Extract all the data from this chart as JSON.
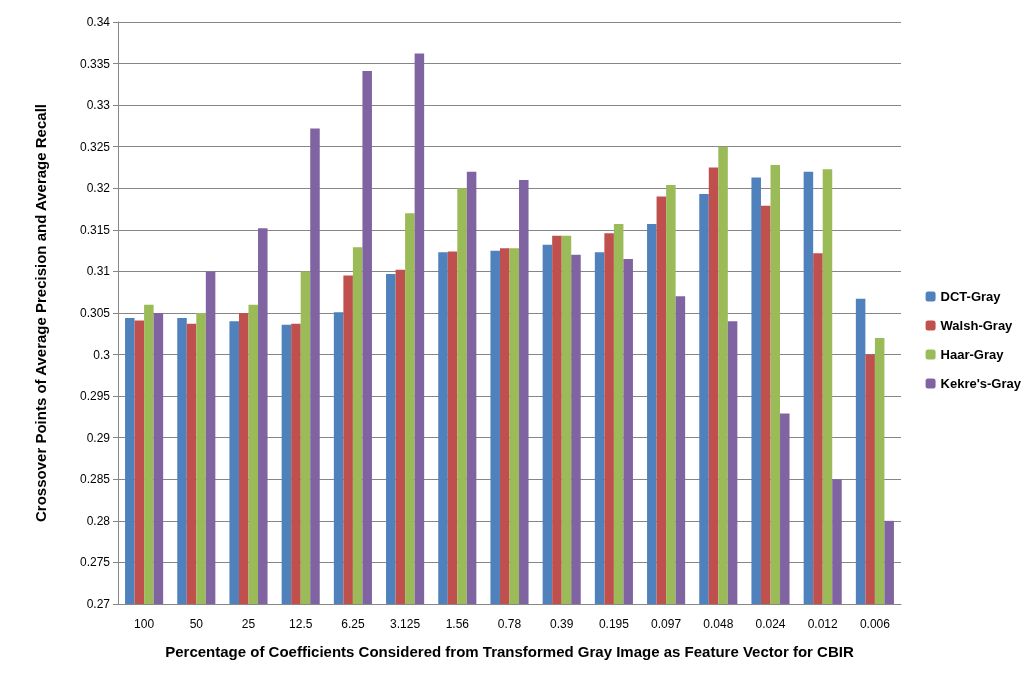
{
  "chart_data": {
    "type": "bar",
    "xlabel": "Percentage of Coefficients Considered from Transformed Gray Image as Feature Vector for CBIR",
    "ylabel": "Crossover Points of Average Precision and Average Recall",
    "categories": [
      "100",
      "50",
      "25",
      "12.5",
      "6.25",
      "3.125",
      "1.56",
      "0.78",
      "0.39",
      "0.195",
      "0.097",
      "0.048",
      "0.024",
      "0.012",
      "0.006"
    ],
    "series": [
      {
        "name": "DCT-Gray",
        "color": "#4f81bd",
        "values": [
          0.3044,
          0.3044,
          0.304,
          0.3036,
          0.3051,
          0.3097,
          0.3123,
          0.3125,
          0.3132,
          0.3123,
          0.3157,
          0.3193,
          0.3213,
          0.322,
          0.3067
        ]
      },
      {
        "name": "Walsh-Gray",
        "color": "#c0504d",
        "values": [
          0.3041,
          0.3037,
          0.305,
          0.3037,
          0.3095,
          0.3102,
          0.3124,
          0.3128,
          0.3143,
          0.3146,
          0.319,
          0.3225,
          0.3179,
          0.3122,
          0.3
        ]
      },
      {
        "name": "Haar-Gray",
        "color": "#9bbb59",
        "values": [
          0.306,
          0.305,
          0.306,
          0.31,
          0.3129,
          0.317,
          0.32,
          0.3128,
          0.3143,
          0.3157,
          0.3204,
          0.325,
          0.3228,
          0.3223,
          0.302
        ]
      },
      {
        "name": "Kekre's-Gray",
        "color": "#8064a2",
        "values": [
          0.305,
          0.31,
          0.3152,
          0.3272,
          0.3341,
          0.3362,
          0.322,
          0.321,
          0.312,
          0.3115,
          0.307,
          0.304,
          0.2929,
          0.285,
          0.28
        ]
      }
    ],
    "ylim": [
      0.27,
      0.34
    ],
    "yticks": [
      0.27,
      0.275,
      0.28,
      0.285,
      0.29,
      0.295,
      0.3,
      0.305,
      0.31,
      0.315,
      0.32,
      0.325,
      0.33,
      0.335,
      0.34
    ],
    "grid": "y",
    "legend": "right"
  }
}
